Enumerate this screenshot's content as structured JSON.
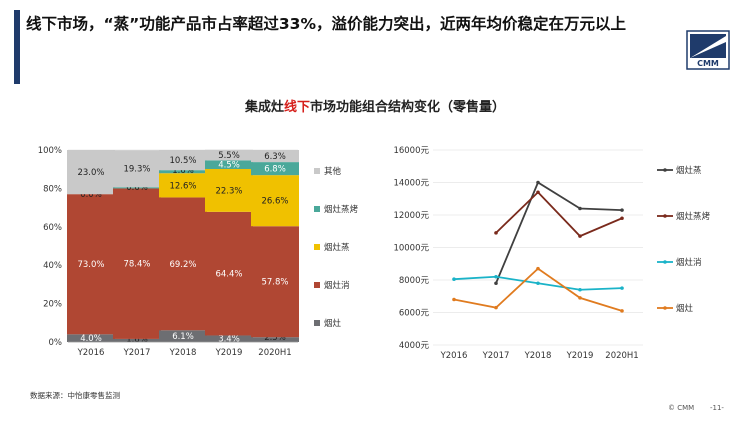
{
  "headline": "线下市场，“蒸”功能产品市占率超过33%，溢价能力突出，近两年均价稳定在万元以上",
  "logo_text": "CMM",
  "chart_title": {
    "prefix": "集成灶",
    "highlight": "线下",
    "suffix": "市场功能组合结构变化（零售量）"
  },
  "colors": {
    "accent": "#1f3b6b",
    "highlight": "#d6201c"
  },
  "chart_data": [
    {
      "type": "bar",
      "stacked": true,
      "percent": true,
      "categories": [
        "Y2016",
        "Y2017",
        "Y2018",
        "Y2019",
        "2020H1"
      ],
      "yticks": [
        "0%",
        "20%",
        "40%",
        "60%",
        "80%",
        "100%"
      ],
      "ylim": [
        0,
        100
      ],
      "series": [
        {
          "name": "烟灶",
          "color": "#6d6e72",
          "values": [
            4.0,
            1.6,
            6.1,
            3.4,
            2.5
          ],
          "labels": [
            "4.0%",
            "1.6%",
            "6.1%",
            "3.4%",
            "2.5%"
          ]
        },
        {
          "name": "烟灶消",
          "color": "#b04733",
          "values": [
            73.0,
            78.4,
            69.2,
            64.4,
            57.8
          ],
          "labels": [
            "73.0%",
            "78.4%",
            "69.2%",
            "64.4%",
            "57.8%"
          ]
        },
        {
          "name": "烟灶蒸",
          "color": "#f0c100",
          "values": [
            0,
            0,
            12.6,
            22.3,
            26.6
          ],
          "labels": [
            "",
            "",
            "12.6%",
            "22.3%",
            "26.6%"
          ]
        },
        {
          "name": "烟灶蒸烤",
          "color": "#4aa89a",
          "values": [
            0.0,
            0.6,
            1.6,
            4.5,
            6.8
          ],
          "labels": [
            "0.0%",
            "0.6%",
            "1.6%",
            "4.5%",
            "6.8%"
          ]
        },
        {
          "name": "其他",
          "color": "#c9c9c9",
          "values": [
            23.0,
            19.3,
            10.5,
            5.5,
            6.3
          ],
          "labels": [
            "23.0%",
            "19.3%",
            "10.5%",
            "5.5%",
            "6.3%"
          ]
        }
      ],
      "legend": [
        "其他",
        "烟灶蒸烤",
        "烟灶蒸",
        "烟灶消",
        "烟灶"
      ],
      "legend_position": "right"
    },
    {
      "type": "line",
      "x": [
        "Y2016",
        "Y2017",
        "Y2018",
        "Y2019",
        "2020H1"
      ],
      "ylim": [
        4000,
        16000
      ],
      "yticks": [
        "4000元",
        "6000元",
        "8000元",
        "10000元",
        "12000元",
        "14000元",
        "16000元"
      ],
      "series": [
        {
          "name": "烟灶蒸",
          "color": "#404040",
          "values": [
            null,
            7800,
            14000,
            12400,
            12300
          ]
        },
        {
          "name": "烟灶蒸烤",
          "color": "#7a2a1c",
          "values": [
            null,
            10900,
            13400,
            10700,
            11800
          ]
        },
        {
          "name": "烟灶消",
          "color": "#1ab3c8",
          "values": [
            8050,
            8200,
            7800,
            7400,
            7500
          ]
        },
        {
          "name": "烟灶",
          "color": "#e07b1f",
          "values": [
            6800,
            6300,
            8700,
            6900,
            6100
          ]
        }
      ],
      "legend": [
        "烟灶蒸",
        "烟灶蒸烤",
        "烟灶消",
        "烟灶"
      ],
      "legend_position": "right"
    }
  ],
  "footer": {
    "source": "数据来源：中怡康零售监测",
    "copyright": "© CMM",
    "page": "-11-"
  }
}
